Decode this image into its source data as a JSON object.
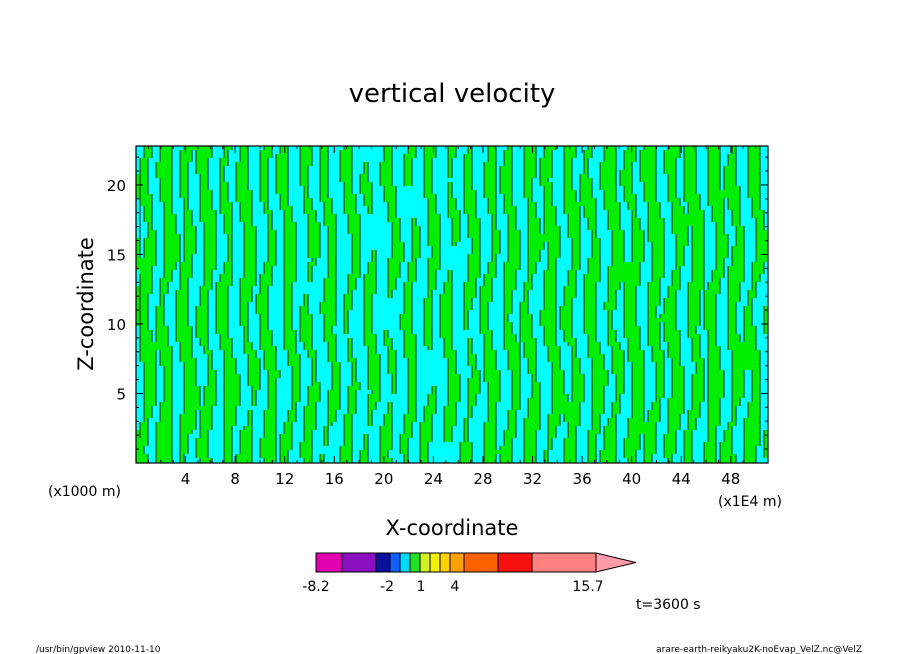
{
  "chart_data": {
    "type": "heatmap",
    "title": "vertical velocity",
    "xlabel": "X-coordinate",
    "ylabel": "Z-coordinate",
    "x_unit_left": "(x1000 m)",
    "x_unit_right": "(x1E4 m)",
    "x_ticks": [
      "4",
      "8",
      "12",
      "16",
      "20",
      "24",
      "28",
      "32",
      "36",
      "40",
      "44",
      "48"
    ],
    "y_ticks": [
      "5",
      "10",
      "15",
      "20"
    ],
    "xlim": [
      0,
      51
    ],
    "ylim": [
      0,
      22.8
    ],
    "colorbar": {
      "labels": [
        "-8.2",
        "-2",
        "1",
        "4",
        "15.7"
      ],
      "colors": [
        "#e000b0",
        "#8a10c0",
        "#0a10a0",
        "#1060ff",
        "#00d8f8",
        "#20e020",
        "#d0f020",
        "#f0f000",
        "#ffd000",
        "#ffa000",
        "#ff6000",
        "#f81010",
        "#ff8080",
        "#ff9aa8"
      ]
    },
    "field_colors": {
      "negative": "#00ffff",
      "positive": "#00ee00",
      "contour": "#1a1a1a"
    },
    "time_label": "t=3600 s"
  },
  "footer": {
    "left": "/usr/bin/gpview   2010-11-10",
    "right": "arare-earth-reikyaku2K-noEvap_VelZ.nc@VelZ"
  }
}
